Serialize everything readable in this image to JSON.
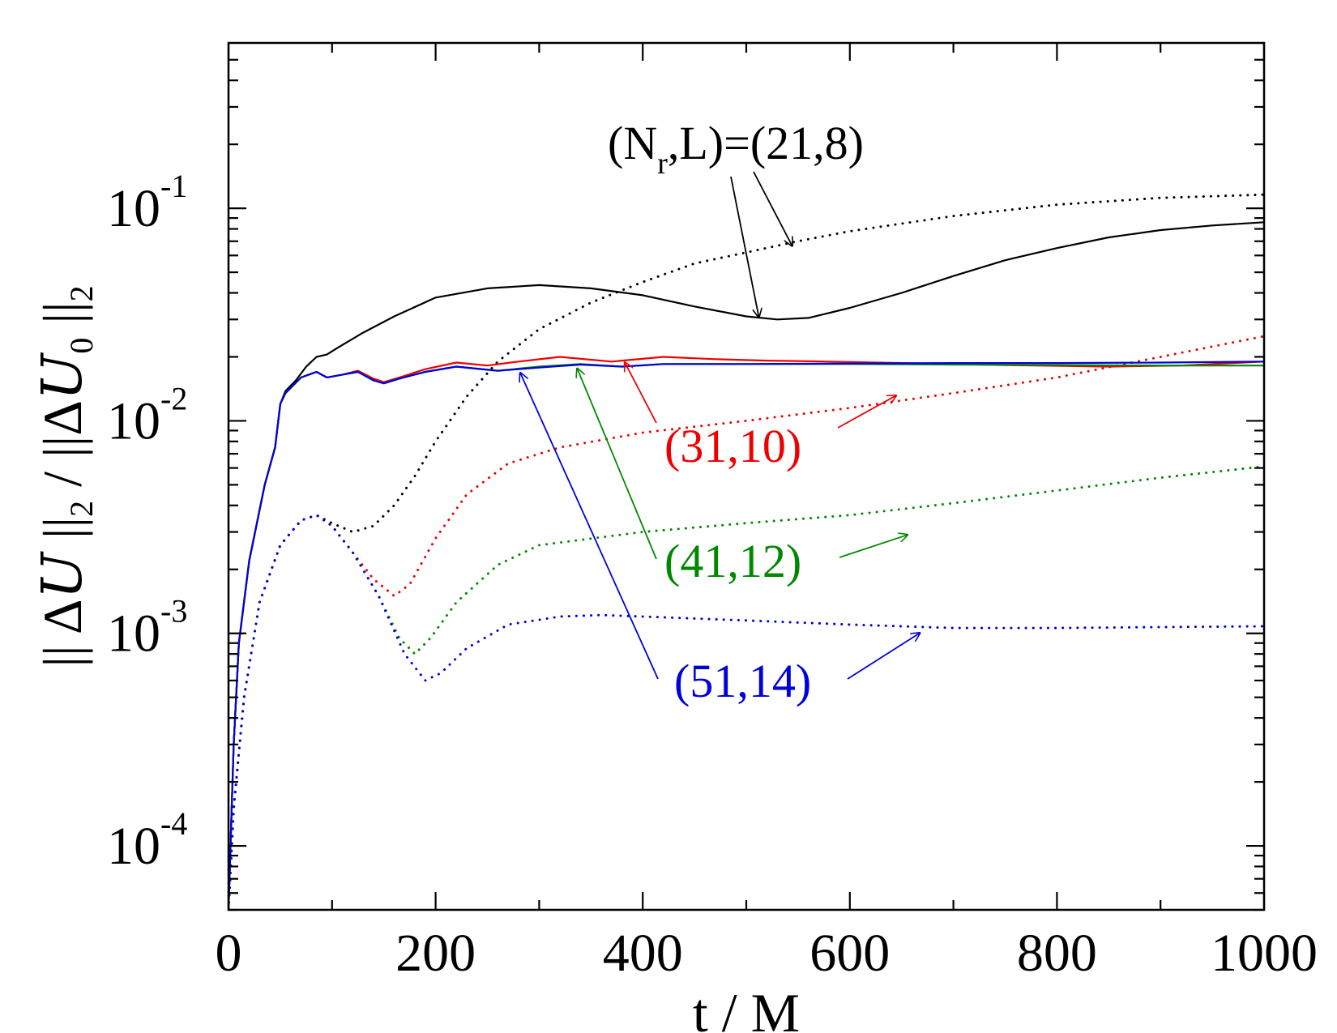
{
  "chart_data": {
    "type": "line",
    "title": "",
    "xlabel": "t / M",
    "ylabel_parts": {
      "left": "|| Δ",
      "var1": "U",
      "mid1": " ||",
      "sub1": "2",
      "mid2": " / ||Δ",
      "var2": "U",
      "sub2": "0",
      "right": " ||",
      "sub3": "2"
    },
    "xlim": [
      0,
      1000
    ],
    "ylim": [
      5e-05,
      0.6
    ],
    "yscale": "log",
    "grid": false,
    "x_ticks": [
      "0",
      "200",
      "400",
      "600",
      "800",
      "1000"
    ],
    "y_ticks": [
      {
        "base": "10",
        "exp": "-4",
        "value": 0.0001
      },
      {
        "base": "10",
        "exp": "-3",
        "value": 0.001
      },
      {
        "base": "10",
        "exp": "-2",
        "value": 0.01
      },
      {
        "base": "10",
        "exp": "-1",
        "value": 0.1
      }
    ],
    "series": [
      {
        "label": "(21,8)",
        "color": "#000000",
        "style": "solid",
        "points": [
          [
            0,
            5e-05
          ],
          [
            5,
            0.0003
          ],
          [
            10,
            0.0009
          ],
          [
            20,
            0.0022
          ],
          [
            35,
            0.005
          ],
          [
            45,
            0.0075
          ],
          [
            50,
            0.012
          ],
          [
            55,
            0.0138
          ],
          [
            65,
            0.0155
          ],
          [
            75,
            0.018
          ],
          [
            85,
            0.02
          ],
          [
            95,
            0.0205
          ],
          [
            105,
            0.022
          ],
          [
            130,
            0.026
          ],
          [
            160,
            0.031
          ],
          [
            200,
            0.038
          ],
          [
            250,
            0.042
          ],
          [
            300,
            0.0435
          ],
          [
            350,
            0.042
          ],
          [
            400,
            0.039
          ],
          [
            450,
            0.0345
          ],
          [
            500,
            0.031
          ],
          [
            530,
            0.03
          ],
          [
            560,
            0.0305
          ],
          [
            600,
            0.034
          ],
          [
            650,
            0.04
          ],
          [
            700,
            0.048
          ],
          [
            750,
            0.057
          ],
          [
            800,
            0.065
          ],
          [
            850,
            0.073
          ],
          [
            900,
            0.079
          ],
          [
            950,
            0.083
          ],
          [
            1000,
            0.086
          ]
        ]
      },
      {
        "label": "(21,8)",
        "color": "#000000",
        "style": "dotted",
        "points": [
          [
            0,
            5e-05
          ],
          [
            5,
            0.00015
          ],
          [
            15,
            0.0005
          ],
          [
            30,
            0.0014
          ],
          [
            50,
            0.0026
          ],
          [
            70,
            0.0034
          ],
          [
            85,
            0.0036
          ],
          [
            100,
            0.0033
          ],
          [
            120,
            0.003
          ],
          [
            140,
            0.0032
          ],
          [
            160,
            0.004
          ],
          [
            180,
            0.0055
          ],
          [
            200,
            0.008
          ],
          [
            230,
            0.013
          ],
          [
            260,
            0.019
          ],
          [
            300,
            0.027
          ],
          [
            350,
            0.036
          ],
          [
            400,
            0.045
          ],
          [
            450,
            0.055
          ],
          [
            500,
            0.062
          ],
          [
            550,
            0.07
          ],
          [
            600,
            0.078
          ],
          [
            700,
            0.092
          ],
          [
            800,
            0.104
          ],
          [
            900,
            0.112
          ],
          [
            1000,
            0.116
          ]
        ]
      },
      {
        "label": "(31,10)",
        "color": "#ee0000",
        "style": "solid",
        "points": [
          [
            0,
            5e-05
          ],
          [
            5,
            0.0003
          ],
          [
            10,
            0.0009
          ],
          [
            20,
            0.0022
          ],
          [
            35,
            0.005
          ],
          [
            45,
            0.0075
          ],
          [
            50,
            0.012
          ],
          [
            55,
            0.0135
          ],
          [
            70,
            0.016
          ],
          [
            85,
            0.017
          ],
          [
            95,
            0.016
          ],
          [
            110,
            0.0165
          ],
          [
            125,
            0.0172
          ],
          [
            140,
            0.0158
          ],
          [
            150,
            0.0152
          ],
          [
            165,
            0.016
          ],
          [
            190,
            0.0175
          ],
          [
            220,
            0.0188
          ],
          [
            250,
            0.0182
          ],
          [
            280,
            0.019
          ],
          [
            320,
            0.02
          ],
          [
            370,
            0.019
          ],
          [
            420,
            0.02
          ],
          [
            470,
            0.0195
          ],
          [
            520,
            0.0192
          ],
          [
            580,
            0.019
          ],
          [
            650,
            0.0187
          ],
          [
            750,
            0.0183
          ],
          [
            850,
            0.018
          ],
          [
            920,
            0.0182
          ],
          [
            1000,
            0.019
          ]
        ]
      },
      {
        "label": "(31,10)",
        "color": "#ee0000",
        "style": "dotted",
        "points": [
          [
            0,
            5e-05
          ],
          [
            5,
            0.00015
          ],
          [
            15,
            0.0005
          ],
          [
            30,
            0.0014
          ],
          [
            50,
            0.0026
          ],
          [
            70,
            0.0034
          ],
          [
            85,
            0.0036
          ],
          [
            100,
            0.0032
          ],
          [
            120,
            0.0024
          ],
          [
            140,
            0.0018
          ],
          [
            160,
            0.0015
          ],
          [
            175,
            0.0017
          ],
          [
            200,
            0.0028
          ],
          [
            230,
            0.0045
          ],
          [
            270,
            0.0063
          ],
          [
            320,
            0.0075
          ],
          [
            400,
            0.0088
          ],
          [
            500,
            0.01
          ],
          [
            600,
            0.0115
          ],
          [
            700,
            0.0135
          ],
          [
            800,
            0.016
          ],
          [
            900,
            0.02
          ],
          [
            1000,
            0.025
          ]
        ]
      },
      {
        "label": "(41,12)",
        "color": "#008800",
        "style": "solid",
        "points": [
          [
            0,
            5e-05
          ],
          [
            5,
            0.0003
          ],
          [
            10,
            0.0009
          ],
          [
            20,
            0.0022
          ],
          [
            35,
            0.005
          ],
          [
            45,
            0.0075
          ],
          [
            50,
            0.012
          ],
          [
            55,
            0.0135
          ],
          [
            70,
            0.016
          ],
          [
            85,
            0.017
          ],
          [
            95,
            0.016
          ],
          [
            110,
            0.0165
          ],
          [
            125,
            0.017
          ],
          [
            140,
            0.0155
          ],
          [
            150,
            0.015
          ],
          [
            165,
            0.0158
          ],
          [
            190,
            0.017
          ],
          [
            220,
            0.018
          ],
          [
            260,
            0.0172
          ],
          [
            300,
            0.018
          ],
          [
            340,
            0.0185
          ],
          [
            380,
            0.018
          ],
          [
            420,
            0.0185
          ],
          [
            500,
            0.0185
          ],
          [
            600,
            0.0185
          ],
          [
            700,
            0.0184
          ],
          [
            800,
            0.0183
          ],
          [
            900,
            0.0182
          ],
          [
            1000,
            0.0182
          ]
        ]
      },
      {
        "label": "(41,12)",
        "color": "#008800",
        "style": "dotted",
        "points": [
          [
            0,
            5e-05
          ],
          [
            5,
            0.00015
          ],
          [
            15,
            0.0005
          ],
          [
            30,
            0.0014
          ],
          [
            50,
            0.0026
          ],
          [
            70,
            0.0034
          ],
          [
            85,
            0.0036
          ],
          [
            100,
            0.0032
          ],
          [
            120,
            0.0024
          ],
          [
            145,
            0.0015
          ],
          [
            165,
            0.00095
          ],
          [
            180,
            0.0008
          ],
          [
            195,
            0.00095
          ],
          [
            220,
            0.0014
          ],
          [
            260,
            0.0021
          ],
          [
            300,
            0.0026
          ],
          [
            400,
            0.003
          ],
          [
            500,
            0.0033
          ],
          [
            600,
            0.0036
          ],
          [
            700,
            0.0041
          ],
          [
            800,
            0.0047
          ],
          [
            900,
            0.0054
          ],
          [
            1000,
            0.0061
          ]
        ]
      },
      {
        "label": "(51,14)",
        "color": "#0000dd",
        "style": "solid",
        "points": [
          [
            0,
            5e-05
          ],
          [
            5,
            0.0003
          ],
          [
            10,
            0.0009
          ],
          [
            20,
            0.0022
          ],
          [
            35,
            0.005
          ],
          [
            45,
            0.0075
          ],
          [
            50,
            0.012
          ],
          [
            55,
            0.0135
          ],
          [
            70,
            0.016
          ],
          [
            85,
            0.017
          ],
          [
            95,
            0.016
          ],
          [
            110,
            0.0165
          ],
          [
            125,
            0.017
          ],
          [
            140,
            0.0155
          ],
          [
            150,
            0.015
          ],
          [
            165,
            0.0158
          ],
          [
            190,
            0.017
          ],
          [
            220,
            0.018
          ],
          [
            260,
            0.0172
          ],
          [
            300,
            0.0178
          ],
          [
            340,
            0.0184
          ],
          [
            380,
            0.018
          ],
          [
            420,
            0.0185
          ],
          [
            500,
            0.0185
          ],
          [
            600,
            0.0186
          ],
          [
            700,
            0.0187
          ],
          [
            800,
            0.0187
          ],
          [
            900,
            0.0188
          ],
          [
            1000,
            0.019
          ]
        ]
      },
      {
        "label": "(51,14)",
        "color": "#0000dd",
        "style": "dotted",
        "points": [
          [
            0,
            5e-05
          ],
          [
            5,
            0.00015
          ],
          [
            15,
            0.0005
          ],
          [
            30,
            0.0014
          ],
          [
            50,
            0.0026
          ],
          [
            70,
            0.0034
          ],
          [
            85,
            0.0036
          ],
          [
            100,
            0.0032
          ],
          [
            120,
            0.0024
          ],
          [
            145,
            0.0015
          ],
          [
            170,
            0.0008
          ],
          [
            190,
            0.0006
          ],
          [
            205,
            0.00065
          ],
          [
            230,
            0.00085
          ],
          [
            270,
            0.0011
          ],
          [
            320,
            0.0012
          ],
          [
            360,
            0.00122
          ],
          [
            400,
            0.0012
          ],
          [
            500,
            0.00115
          ],
          [
            600,
            0.0011
          ],
          [
            700,
            0.00106
          ],
          [
            800,
            0.00106
          ],
          [
            900,
            0.00107
          ],
          [
            1000,
            0.00108
          ]
        ]
      }
    ],
    "annotations": [
      {
        "text": "(N",
        "sub": "r",
        "rest": ",L)=(21,8)",
        "color": "#000000",
        "arrows": [
          [
            512,
            0.031
          ],
          [
            544,
            0.067
          ]
        ]
      },
      {
        "text": "(31,10)",
        "color": "#ee0000",
        "arrows": [
          [
            383,
            0.0187
          ],
          [
            644,
            0.0131
          ]
        ]
      },
      {
        "text": "(41,12)",
        "color": "#008800",
        "arrows": [
          [
            337,
            0.0175
          ],
          [
            655,
            0.0029
          ]
        ]
      },
      {
        "text": "(51,14)",
        "color": "#0000dd",
        "arrows": [
          [
            282,
            0.0167
          ],
          [
            667,
            0.001
          ]
        ]
      }
    ]
  }
}
